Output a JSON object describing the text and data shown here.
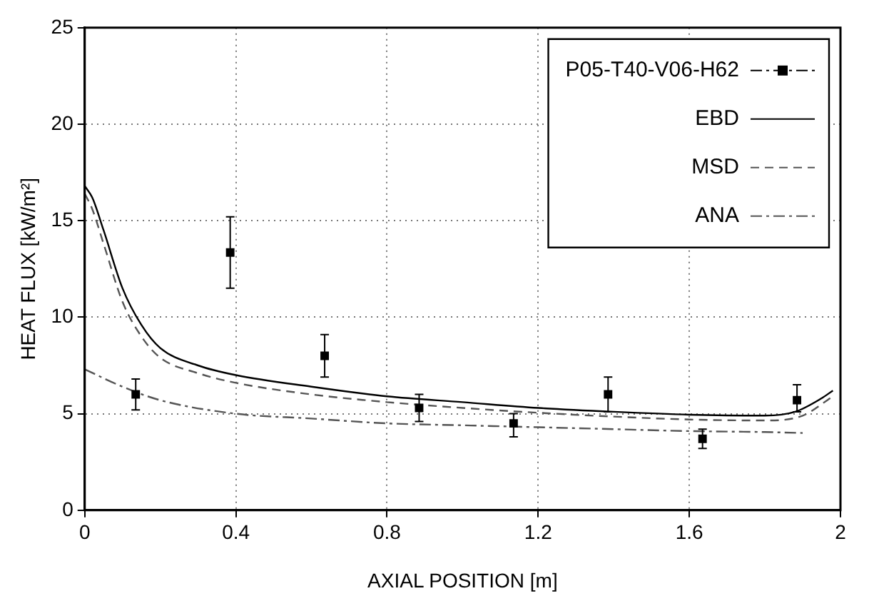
{
  "chart_data": {
    "type": "line",
    "xlabel": "AXIAL POSITION [m]",
    "ylabel": "HEAT FLUX [kW/m²]",
    "xlim": [
      0,
      2
    ],
    "xticks": [
      0,
      0.4,
      0.8,
      1.2,
      1.6,
      2
    ],
    "ylim": [
      0,
      25
    ],
    "yticks": [
      0,
      5,
      10,
      15,
      20,
      25
    ],
    "grid": true,
    "legend": "top right",
    "series": [
      {
        "name": "P05-T40-V06-H62",
        "type": "scatter",
        "color": "#000000",
        "marker": "square",
        "x": [
          0.135,
          0.385,
          0.635,
          0.885,
          1.135,
          1.385,
          1.635,
          1.885
        ],
        "values": [
          6.0,
          13.35,
          8.0,
          5.3,
          4.5,
          6.0,
          3.7,
          5.7
        ],
        "errors": [
          [
            5.2,
            6.8
          ],
          [
            11.5,
            15.2
          ],
          [
            6.9,
            9.1
          ],
          [
            4.6,
            6.0
          ],
          [
            3.8,
            5.0
          ],
          [
            5.1,
            6.9
          ],
          [
            3.2,
            4.2
          ],
          [
            5.1,
            6.5
          ]
        ]
      },
      {
        "name": "EBD",
        "color": "#000000",
        "line_style": "solid",
        "marker": "none",
        "x": [
          0,
          0.02,
          0.05,
          0.1,
          0.15,
          0.2,
          0.3,
          0.4,
          0.6,
          0.8,
          1.0,
          1.2,
          1.4,
          1.6,
          1.8,
          1.88,
          1.95,
          1.98
        ],
        "values": [
          16.8,
          16.2,
          14.5,
          11.5,
          9.6,
          8.4,
          7.5,
          7.0,
          6.4,
          5.9,
          5.6,
          5.3,
          5.1,
          4.95,
          4.9,
          5.1,
          5.8,
          6.2
        ]
      },
      {
        "name": "MSD",
        "color": "#555555",
        "line_style": "dashed",
        "marker": "none",
        "x": [
          0,
          0.02,
          0.05,
          0.1,
          0.15,
          0.2,
          0.3,
          0.4,
          0.6,
          0.8,
          1.0,
          1.2,
          1.4,
          1.6,
          1.8,
          1.9,
          1.98
        ],
        "values": [
          16.4,
          15.6,
          13.8,
          10.8,
          9.0,
          7.9,
          7.1,
          6.6,
          6.0,
          5.6,
          5.3,
          5.05,
          4.85,
          4.7,
          4.65,
          4.9,
          5.9
        ]
      },
      {
        "name": "ANA",
        "color": "#555555",
        "line_style": "dashdot",
        "marker": "none",
        "x": [
          0,
          0.1,
          0.2,
          0.4,
          0.6,
          0.8,
          1.0,
          1.2,
          1.4,
          1.6,
          1.8,
          1.9
        ],
        "values": [
          7.3,
          6.4,
          5.7,
          5.0,
          4.75,
          4.5,
          4.4,
          4.3,
          4.2,
          4.1,
          4.05,
          4.0
        ]
      }
    ]
  }
}
